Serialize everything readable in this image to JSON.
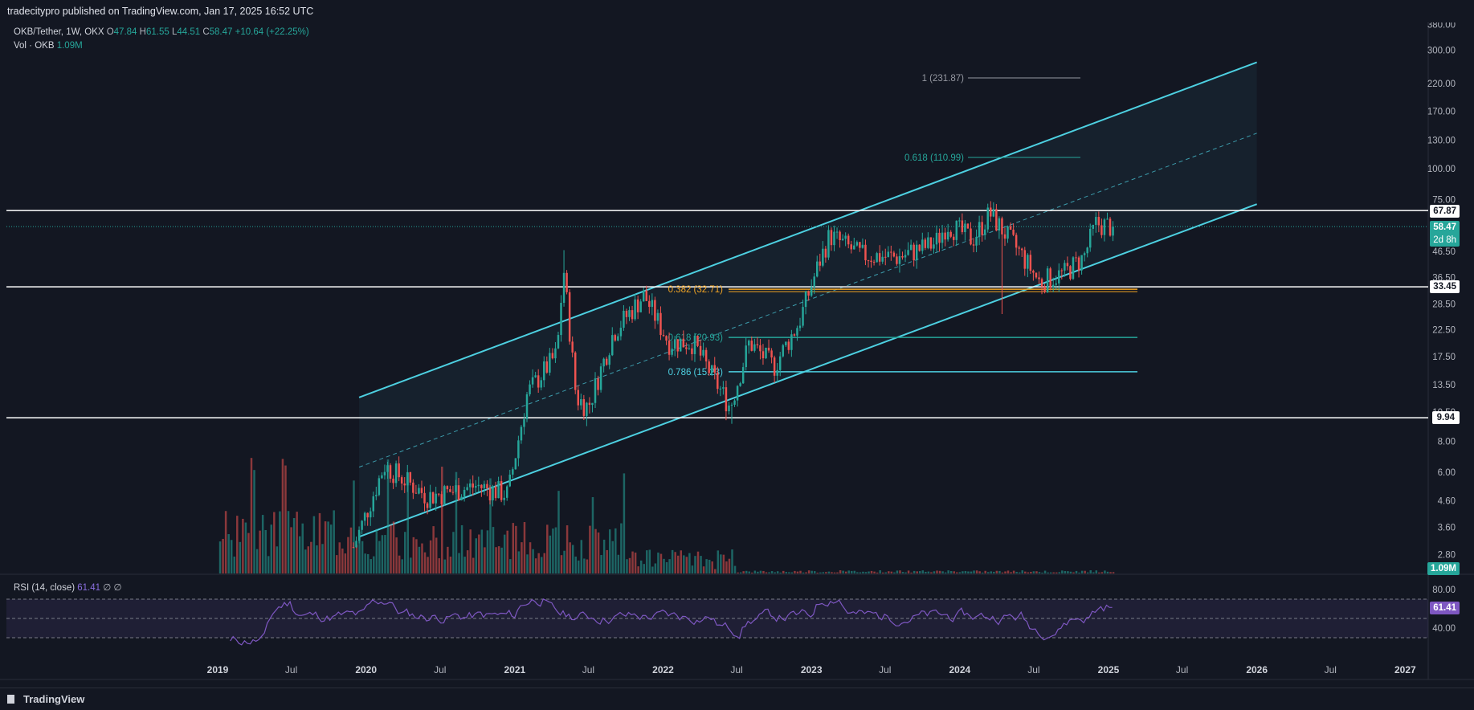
{
  "header": {
    "published": "tradecitypro published on TradingView.com, Jan 17, 2025 16:52 UTC"
  },
  "legend": {
    "symbol": "OKB/Tether, 1W, OKX",
    "o_label": "O",
    "o": "47.84",
    "h_label": "H",
    "h": "61.55",
    "l_label": "L",
    "l": "44.51",
    "c_label": "C",
    "c": "58.47",
    "change": "+10.64 (+22.25%)",
    "vol_label": "Vol · OKB",
    "vol": "1.09M"
  },
  "rsi_legend": {
    "name": "RSI (14, close)",
    "value": "61.41",
    "extra1": "∅",
    "extra2": "∅"
  },
  "price_tags": {
    "current": "58.47",
    "countdown": "2d 8h",
    "h1": "67.87",
    "h2": "33.45",
    "h3": "9.94",
    "volume": "1.09M",
    "rsi": "61.41"
  },
  "footer": {
    "brand": "TradingView"
  },
  "colors": {
    "background": "#131722",
    "up": "#26a69a",
    "down": "#ef5350",
    "channel": "#4dd0e1",
    "fib_orange": "#f5a623",
    "fib_teal": "#26a69a",
    "rsi": "#7e57c2"
  },
  "chart_data": {
    "type": "candlestick",
    "symbol": "OKB/Tether",
    "interval": "1W",
    "scale": "log",
    "y_axis_ticks": [
      "380.00",
      "300.00",
      "220.00",
      "170.00",
      "130.00",
      "100.00",
      "75.00",
      "46.50",
      "36.50",
      "28.50",
      "22.50",
      "17.50",
      "13.50",
      "10.50",
      "8.00",
      "6.00",
      "4.60",
      "3.60",
      "2.80"
    ],
    "x_axis_ticks": [
      "2019",
      "Jul",
      "2020",
      "Jul",
      "2021",
      "Jul",
      "2022",
      "Jul",
      "2023",
      "Jul",
      "2024",
      "Jul",
      "2025",
      "Jul",
      "2026",
      "Jul",
      "2027"
    ],
    "horizontal_levels": [
      67.87,
      33.45,
      9.94
    ],
    "fib_levels": [
      {
        "label": "1 (231.87)",
        "value": 231.87
      },
      {
        "label": "0.618 (110.99)",
        "value": 110.99
      },
      {
        "label": "0.382 (32.71)",
        "value": 32.71
      },
      {
        "label": "0.618 (20.93)",
        "value": 20.93
      },
      {
        "label": "0.786 (15.23)",
        "value": 15.23
      }
    ],
    "channel": {
      "lower_start": {
        "date": "2019-12-15",
        "value": 3.3
      },
      "lower_end": {
        "date": "2026-01-01",
        "value": 72
      },
      "upper_start": {
        "date": "2019-12-15",
        "value": 12
      },
      "upper_end": {
        "date": "2026-01-01",
        "value": 268
      }
    },
    "weekly_closes_anchor": [
      {
        "date": "2019-12-01",
        "value": 3.0
      },
      {
        "date": "2020-02-15",
        "value": 6.4
      },
      {
        "date": "2020-06-01",
        "value": 4.8
      },
      {
        "date": "2020-10-01",
        "value": 5.3
      },
      {
        "date": "2020-12-15",
        "value": 4.9
      },
      {
        "date": "2021-02-01",
        "value": 12.5
      },
      {
        "date": "2021-04-15",
        "value": 18
      },
      {
        "date": "2021-05-01",
        "value": 40
      },
      {
        "date": "2021-06-01",
        "value": 12
      },
      {
        "date": "2021-07-01",
        "value": 11
      },
      {
        "date": "2021-09-01",
        "value": 22
      },
      {
        "date": "2021-11-15",
        "value": 31
      },
      {
        "date": "2022-01-15",
        "value": 20
      },
      {
        "date": "2022-03-15",
        "value": 20
      },
      {
        "date": "2022-06-15",
        "value": 11
      },
      {
        "date": "2022-08-01",
        "value": 20
      },
      {
        "date": "2022-10-01",
        "value": 16
      },
      {
        "date": "2022-12-01",
        "value": 24
      },
      {
        "date": "2023-01-20",
        "value": 42
      },
      {
        "date": "2023-02-15",
        "value": 54
      },
      {
        "date": "2023-05-01",
        "value": 45
      },
      {
        "date": "2023-08-01",
        "value": 44
      },
      {
        "date": "2023-11-01",
        "value": 50
      },
      {
        "date": "2023-12-01",
        "value": 60
      },
      {
        "date": "2024-02-01",
        "value": 52
      },
      {
        "date": "2024-03-15",
        "value": 66
      },
      {
        "date": "2024-06-01",
        "value": 45
      },
      {
        "date": "2024-07-15",
        "value": 35
      },
      {
        "date": "2024-09-15",
        "value": 38
      },
      {
        "date": "2024-11-01",
        "value": 44
      },
      {
        "date": "2024-12-01",
        "value": 60
      },
      {
        "date": "2025-01-13",
        "value": 58.47
      }
    ],
    "rsi": {
      "period": 14,
      "source": "close",
      "last": 61.41,
      "bands": [
        70,
        50,
        30
      ],
      "ticks": [
        "80.00",
        "40.00"
      ]
    }
  }
}
